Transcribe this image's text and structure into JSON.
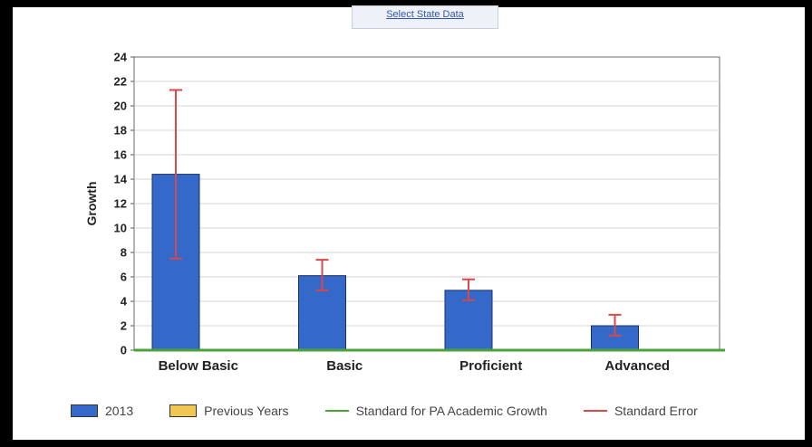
{
  "top_link": {
    "label": "Select State Data"
  },
  "chart_data": {
    "type": "bar",
    "title": "",
    "ylabel": "Growth",
    "xlabel": "",
    "categories": [
      "Below Basic",
      "Basic",
      "Proficient",
      "Advanced"
    ],
    "series": [
      {
        "name": "2013",
        "values": [
          14.4,
          6.1,
          4.9,
          2.0
        ],
        "error_low": [
          7.5,
          4.9,
          4.1,
          1.2
        ],
        "error_high": [
          21.3,
          7.4,
          5.8,
          2.9
        ],
        "color": "#3569c9"
      }
    ],
    "ylim": [
      0,
      24
    ],
    "yticks": [
      "0",
      "2",
      "4",
      "6",
      "8",
      "10",
      "12",
      "14",
      "16",
      "18",
      "20",
      "22",
      "24"
    ],
    "grid": true,
    "standard_line_value": 0,
    "colors": {
      "bar": "#3569c9",
      "previous_years": "#f0c654",
      "standard": "#4aa339",
      "error": "#d9474a"
    },
    "legend": {
      "position": "bottom",
      "items": [
        {
          "label": "2013",
          "kind": "box",
          "color": "#3569c9"
        },
        {
          "label": "Previous Years",
          "kind": "box",
          "color": "#f0c654"
        },
        {
          "label": "Standard for PA Academic Growth",
          "kind": "line",
          "color": "#4aa339"
        },
        {
          "label": "Standard Error",
          "kind": "line",
          "color": "#d9474a"
        }
      ]
    }
  }
}
